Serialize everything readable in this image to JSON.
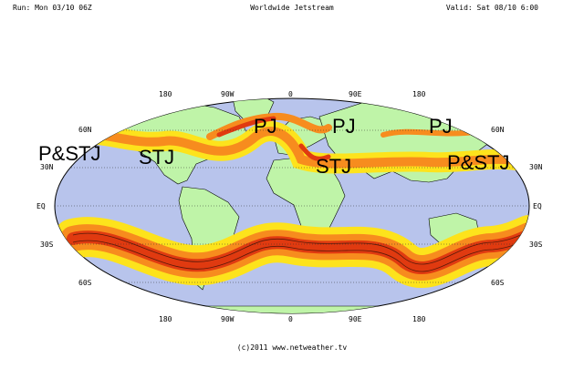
{
  "header": {
    "run": "Run: Mon 03/10 06Z",
    "title": "Worldwide Jetstream",
    "valid": "Valid: Sat 08/10 6:00"
  },
  "longitude_labels": [
    "180",
    "90W",
    "0",
    "90E",
    "180"
  ],
  "latitude_labels_left": [
    "60N",
    "30N",
    "EQ",
    "30S",
    "60S"
  ],
  "latitude_labels_right": [
    "60N",
    "30N",
    "EQ",
    "30S",
    "60S"
  ],
  "jet_labels": [
    "P&STJ",
    "STJ",
    "PJ",
    "PJ",
    "STJ",
    "PJ",
    "P&STJ"
  ],
  "credit": "(c)2011 www.netweather.tv",
  "colors": {
    "ocean": "#b8c4ec",
    "land": "#bff4a8",
    "jet_strong": "#e03a10",
    "jet_medium": "#f78c1e",
    "jet_weak": "#fde31c"
  }
}
